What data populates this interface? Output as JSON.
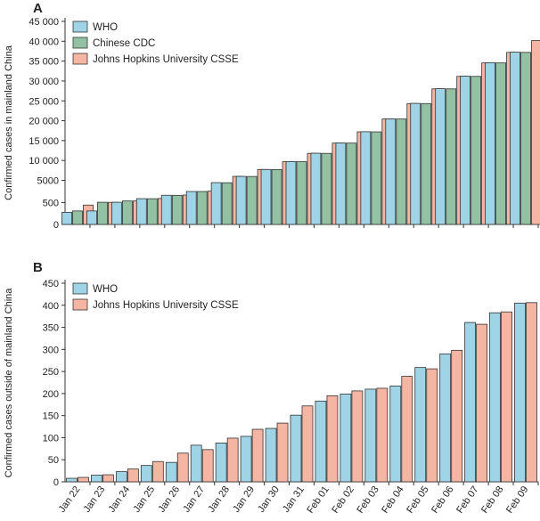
{
  "colors": {
    "who": "#9fd3e6",
    "cdc": "#93c1a3",
    "jhu": "#f5b5a3",
    "stroke": "#333333"
  },
  "chart_data": [
    {
      "type": "bar",
      "panel": "A",
      "ylabel": "Confirmed cases in mainland China",
      "yticks": [
        "0",
        "500",
        "5000",
        "10 000",
        "15 000",
        "20 000",
        "25 000",
        "30 000",
        "35 000",
        "40 000",
        "45 000"
      ],
      "yaxis_note": "broken scale: 0–500 segment, then linear 5000–45 000",
      "ylim": [
        0,
        45000
      ],
      "legend_position": "top-left",
      "categories": [
        "Jan 22",
        "Jan 23",
        "Jan 24",
        "Jan 25",
        "Jan 26",
        "Jan 27",
        "Jan 28",
        "Jan 29",
        "Jan 30",
        "Jan 31",
        "Feb 01",
        "Feb 02",
        "Feb 03",
        "Feb 04",
        "Feb 05",
        "Feb 06",
        "Feb 07",
        "Feb 08",
        "Feb 09"
      ],
      "series": [
        {
          "name": "WHO",
          "color_key": "who",
          "values": [
            278,
            309,
            571,
            1297,
            1985,
            2741,
            4537,
            5997,
            7736,
            9720,
            11821,
            14411,
            17238,
            20471,
            24363,
            28060,
            31211,
            34598,
            37251
          ]
        },
        {
          "name": "Chinese CDC",
          "color_key": "cdc",
          "values": [
            309,
            571,
            830,
            1287,
            1975,
            2744,
            4515,
            5974,
            7711,
            9692,
            11791,
            14380,
            17205,
            20438,
            24324,
            28018,
            31161,
            34546,
            37198
          ]
        },
        {
          "name": "Johns Hopkins University CSSE",
          "color_key": "jhu",
          "values": [
            444,
            549,
            830,
            1330,
            2026,
            2817,
            5998,
            7736,
            9697,
            11791,
            14380,
            17205,
            20438,
            24324,
            28018,
            31161,
            34546,
            37198,
            40171
          ]
        }
      ]
    },
    {
      "type": "bar",
      "panel": "B",
      "ylabel": "Confirmed cases outside of mainland China",
      "yticks": [
        "0",
        "50",
        "100",
        "150",
        "200",
        "250",
        "300",
        "350",
        "400",
        "450"
      ],
      "ylim": [
        0,
        450
      ],
      "legend_position": "top-left",
      "categories": [
        "Jan 22",
        "Jan 23",
        "Jan 24",
        "Jan 25",
        "Jan 26",
        "Jan 27",
        "Jan 28",
        "Jan 29",
        "Jan 30",
        "Jan 31",
        "Feb 01",
        "Feb 02",
        "Feb 03",
        "Feb 04",
        "Feb 05",
        "Feb 06",
        "Feb 07",
        "Feb 08",
        "Feb 09"
      ],
      "series": [
        {
          "name": "WHO",
          "color_key": "who",
          "values": [
            8,
            15,
            23,
            37,
            44,
            83,
            88,
            103,
            121,
            151,
            183,
            199,
            210,
            217,
            259,
            290,
            361,
            383,
            405
          ]
        },
        {
          "name": "Johns Hopkins University CSSE",
          "color_key": "jhu",
          "values": [
            10,
            16,
            29,
            46,
            65,
            73,
            99,
            119,
            133,
            172,
            195,
            206,
            212,
            239,
            256,
            298,
            357,
            385,
            406
          ]
        }
      ]
    }
  ]
}
